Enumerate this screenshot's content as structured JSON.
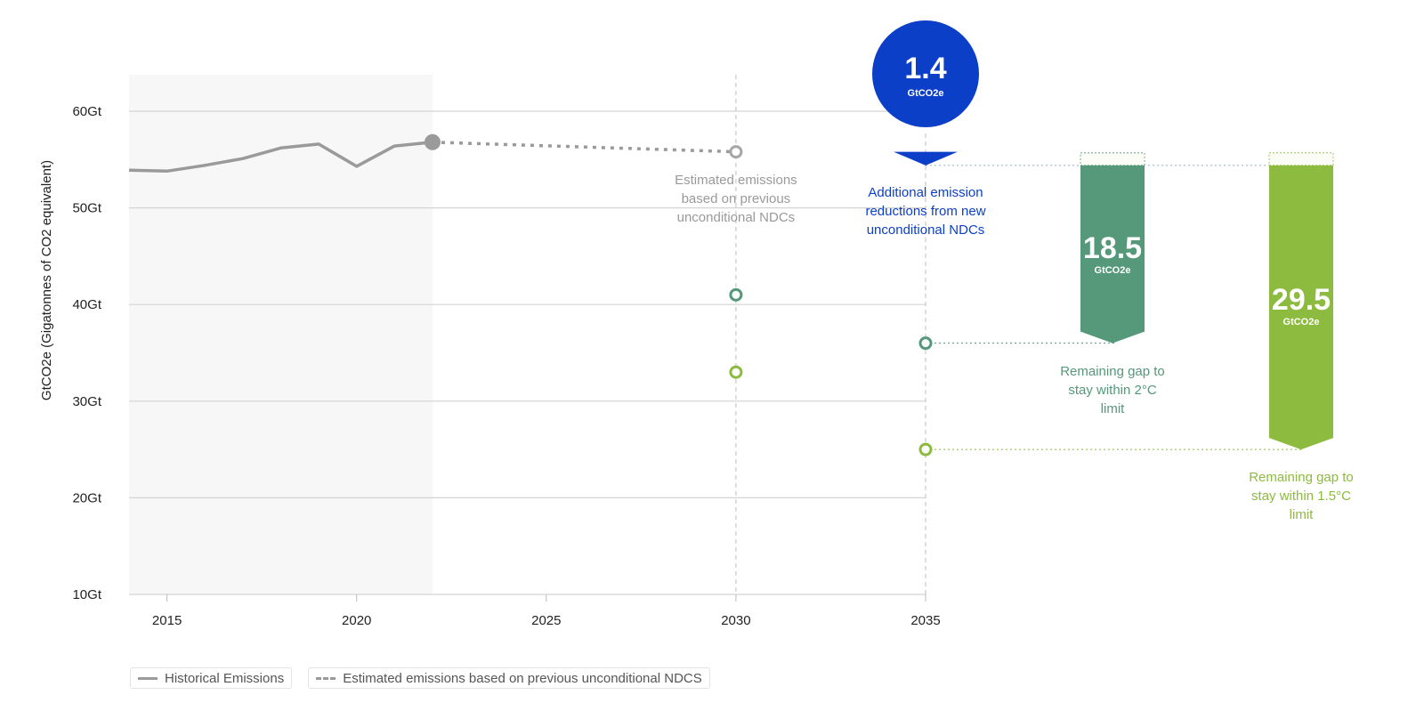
{
  "chart_data": {
    "type": "line",
    "y_axis": {
      "label": "GtCO2e (Gigatonnes of CO2 equivalent)",
      "ticks": [
        "10Gt",
        "20Gt",
        "30Gt",
        "40Gt",
        "50Gt",
        "60Gt"
      ],
      "tick_values": [
        10,
        20,
        30,
        40,
        50,
        60
      ],
      "range": [
        10,
        60
      ]
    },
    "x_axis": {
      "ticks": [
        "2015",
        "2020",
        "2025",
        "2030",
        "2035"
      ],
      "tick_values": [
        2015,
        2020,
        2025,
        2030,
        2035
      ],
      "range": [
        2014,
        2035
      ]
    },
    "historical_shading": [
      2014,
      2022
    ],
    "series": [
      {
        "name": "Historical Emissions",
        "style": "solid",
        "color": "#9a9a9a",
        "points": [
          [
            2014,
            53.9
          ],
          [
            2015,
            53.8
          ],
          [
            2016,
            54.4
          ],
          [
            2017,
            55.1
          ],
          [
            2018,
            56.2
          ],
          [
            2019,
            56.6
          ],
          [
            2020,
            54.3
          ],
          [
            2021,
            56.4
          ],
          [
            2022,
            56.8
          ]
        ]
      },
      {
        "name": "Estimated emissions based on previous unconditional NDCS",
        "style": "dashed",
        "color": "#9a9a9a",
        "points": [
          [
            2022,
            56.8
          ],
          [
            2030,
            55.8
          ]
        ]
      }
    ],
    "markers": [
      {
        "x": 2030,
        "y": 55.8,
        "color": "#a6a6a6"
      },
      {
        "x": 2030,
        "y": 41.0,
        "color": "#55987a"
      },
      {
        "x": 2030,
        "y": 33.0,
        "color": "#8dbb3f"
      },
      {
        "x": 2035,
        "y": 36.0,
        "color": "#55987a"
      },
      {
        "x": 2035,
        "y": 25.0,
        "color": "#8dbb3f"
      }
    ],
    "reference_level": 54.4,
    "reduction_bubble": {
      "value": "1.4",
      "unit": "GtCO2e",
      "color": "#0c3fc7"
    },
    "gap_bars": [
      {
        "value": "18.5",
        "unit": "GtCO2e",
        "top": 54.4,
        "bottom": 36.0,
        "color": "#55987a"
      },
      {
        "value": "29.5",
        "unit": "GtCO2e",
        "top": 54.4,
        "bottom": 25.0,
        "color": "#8dbb3f"
      }
    ],
    "annotations": {
      "estimated": [
        "Estimated emissions",
        "based on previous",
        "unconditional NDCs"
      ],
      "additional": [
        "Additional emission",
        "reductions from new",
        "unconditional NDCs"
      ],
      "gap2": [
        "Remaining gap to",
        "stay within 2°C",
        "limit"
      ],
      "gap15": [
        "Remaining gap to",
        "stay within 1.5°C",
        "limit"
      ]
    },
    "colors": {
      "grid": "#d4d4d4",
      "historical": "#9a9a9a",
      "two_degree": "#55987a",
      "one_five_degree": "#8dbb3f",
      "reduction": "#0c3fc7"
    }
  },
  "legend": {
    "historical": "Historical Emissions",
    "estimated": "Estimated emissions based on previous unconditional NDCS"
  }
}
